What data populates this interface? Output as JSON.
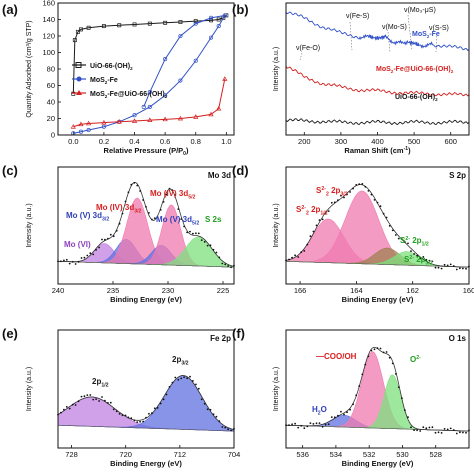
{
  "chart_data": [
    {
      "panel": "(a)",
      "type": "line",
      "xlabel": "Relative Pressure (P/P",
      "xlabel_sub": "0",
      "xlabel_end": ")",
      "ylabel": "Quantity Adsorbed (cm³/g STP)",
      "xlim": [
        -0.1,
        1.05
      ],
      "ylim": [
        0,
        160
      ],
      "xticks": [
        "0.0",
        "0.2",
        "0.4",
        "0.6",
        "0.8",
        "1.0"
      ],
      "yticks": [
        "0",
        "20",
        "40",
        "60",
        "80",
        "100",
        "120",
        "140",
        "160"
      ],
      "legend_position": "bottom-center",
      "series": [
        {
          "name": "UiO-66-(OH)",
          "name_sub": "2",
          "color": "#1a1a1a",
          "marker": "square",
          "x": [
            0.0,
            0.01,
            0.03,
            0.05,
            0.1,
            0.2,
            0.3,
            0.4,
            0.5,
            0.6,
            0.7,
            0.8,
            0.9,
            0.95,
            0.98,
            1.0
          ],
          "y": [
            50,
            115,
            125,
            128,
            130,
            132,
            133,
            134,
            135,
            136,
            137,
            138,
            139,
            140,
            142,
            145
          ]
        },
        {
          "name": "MoS",
          "name_sub": "2",
          "name_end": "-Fe",
          "color": "#3050c8",
          "marker": "circle",
          "x": [
            0.0,
            0.05,
            0.1,
            0.2,
            0.3,
            0.4,
            0.5,
            0.6,
            0.7,
            0.8,
            0.9,
            0.95,
            0.99,
            0.9,
            0.8,
            0.7,
            0.6,
            0.5,
            0.46
          ],
          "y": [
            2,
            4,
            6,
            10,
            16,
            24,
            34,
            48,
            66,
            90,
            118,
            132,
            145,
            142,
            135,
            120,
            92,
            52,
            34
          ]
        },
        {
          "name": "MoS",
          "name_sub": "2",
          "name_end": "-Fe@UiO-66-(OH)",
          "name_sub2": "2",
          "color": "#d42020",
          "marker": "triangle",
          "x": [
            0.0,
            0.05,
            0.1,
            0.2,
            0.3,
            0.4,
            0.5,
            0.6,
            0.7,
            0.8,
            0.9,
            0.95,
            0.99
          ],
          "y": [
            10,
            13,
            14,
            15,
            16,
            17,
            18,
            19,
            20,
            22,
            25,
            32,
            68
          ]
        }
      ]
    },
    {
      "panel": "(b)",
      "type": "line",
      "xlabel": "Raman Shift (cm",
      "xlabel_sup": "-1",
      "xlabel_end": ")",
      "ylabel": "Intensity (a.u.)",
      "xlim": [
        150,
        650
      ],
      "xticks": [
        "200",
        "300",
        "400",
        "500",
        "600"
      ],
      "annotations": [
        "ν(Fe-S)",
        "ν(Mo-S)",
        "ν(Mo₃-μS)",
        "ν(S-S)",
        "ν(Fe-O)"
      ],
      "series": [
        {
          "name": "MoS",
          "name_sub": "2",
          "name_end": "-Fe",
          "color": "#3050c8",
          "x": [
            150,
            200,
            250,
            300,
            350,
            380,
            400,
            420,
            450,
            480,
            500,
            520,
            550,
            600,
            650
          ],
          "y": [
            98,
            93,
            86,
            81,
            78,
            78,
            77,
            78,
            73,
            74,
            73,
            71,
            72,
            70,
            68
          ]
        },
        {
          "name": "MoS",
          "name_sub": "2",
          "name_end": "-Fe@UiO-66-(OH)",
          "name_sub2": "2",
          "color": "#d42020",
          "x": [
            150,
            200,
            250,
            300,
            350,
            400,
            450,
            500,
            550,
            600,
            650
          ],
          "y": [
            55,
            46,
            41,
            38,
            36,
            35,
            34,
            33,
            33,
            32,
            32
          ]
        },
        {
          "name": "UiO-66-(OH)",
          "name_sub": "2",
          "color": "#1a1a1a",
          "x": [
            150,
            200,
            250,
            300,
            350,
            400,
            450,
            500,
            550,
            600,
            650
          ],
          "y": [
            12,
            11,
            11,
            10,
            10,
            10,
            10,
            10,
            10,
            10,
            10
          ]
        }
      ]
    },
    {
      "panel": "(c)",
      "type": "area",
      "corner_label": "Mo 3d",
      "xlabel": "Binding Energy (eV)",
      "ylabel": "Intensity (a.u.)",
      "xlim": [
        240,
        224
      ],
      "xticks": [
        "240",
        "235",
        "230",
        "225"
      ],
      "peaks": [
        {
          "name": "Mo (VI)",
          "center": 235.8,
          "height": 0.2,
          "width": 0.9,
          "color": "#c080e0",
          "label_color": "#9040c0"
        },
        {
          "name": "Mo (V) 3d",
          "name_sub": "3/2",
          "center": 233.8,
          "height": 0.25,
          "width": 0.9,
          "color": "#6070e0",
          "label_color": "#3040b8"
        },
        {
          "name": "Mo (IV) 3d",
          "name_sub": "3/2",
          "center": 232.8,
          "height": 0.68,
          "width": 0.95,
          "color": "#f07ab0",
          "label_color": "#d82020"
        },
        {
          "name": "Mo (V) 3d",
          "name_sub": "5/2",
          "center": 230.6,
          "height": 0.2,
          "width": 0.9,
          "color": "#6070e0",
          "label_color": "#3040b8"
        },
        {
          "name": "Mo (IV) 3d",
          "name_sub": "5/2",
          "center": 229.7,
          "height": 0.62,
          "width": 0.85,
          "color": "#f07ab0",
          "label_color": "#d82020"
        },
        {
          "name": "S 2s",
          "center": 227.2,
          "height": 0.3,
          "width": 1.2,
          "color": "#7ee07e",
          "label_color": "#20a020"
        }
      ]
    },
    {
      "panel": "(d)",
      "type": "area",
      "corner_label": "S 2p",
      "xlabel": "Binding Energy (eV)",
      "ylabel": "Intensity (a.u.)",
      "xlim": [
        166.5,
        160
      ],
      "xticks": [
        "166",
        "164",
        "162",
        "160"
      ],
      "peaks": [
        {
          "name": "S",
          "name_sub": "2",
          "name_sup": "2-",
          "name_end": " 2p",
          "name_sub2": "1/2",
          "center": 165.0,
          "height": 0.45,
          "width": 0.55,
          "color": "#f07ab0",
          "label_color": "#d82020"
        },
        {
          "name": "S",
          "name_sub": "2",
          "name_sup": "2-",
          "name_end": " 2p",
          "name_sub2": "3/2",
          "center": 163.8,
          "height": 0.75,
          "width": 0.6,
          "color": "#f07ab0",
          "label_color": "#d82020"
        },
        {
          "name": "S",
          "name_sup": "2-",
          "name_end": " 2p",
          "name_sub2": "1/2",
          "center": 162.9,
          "height": 0.17,
          "width": 0.45,
          "color": "#a08050",
          "label_color": "#20a020"
        },
        {
          "name": "S",
          "name_sup": "2-",
          "name_end": " 2p",
          "name_sub2": "3/2",
          "center": 162.2,
          "height": 0.14,
          "width": 0.45,
          "color": "#7ee07e",
          "label_color": "#20a020"
        }
      ]
    },
    {
      "panel": "(e)",
      "type": "area",
      "corner_label": "Fe 2p",
      "xlabel": "Binding Energy (eV)",
      "ylabel": "Intensity (a.u.)",
      "xlim": [
        730,
        704
      ],
      "xticks": [
        "728",
        "720",
        "712",
        "704"
      ],
      "peaks": [
        {
          "name": "2p",
          "name_sub": "1/2",
          "center": 725.0,
          "height": 0.3,
          "width": 3.5,
          "color": "#c080e0",
          "label_color": "#1a1a1a"
        },
        {
          "name": "2p",
          "name_sub": "3/2",
          "center": 711.5,
          "height": 0.55,
          "width": 2.8,
          "color": "#6070e0",
          "label_color": "#1a1a1a"
        }
      ]
    },
    {
      "panel": "(f)",
      "type": "area",
      "corner_label": "O 1s",
      "xlabel": "Binding Energy (eV)",
      "ylabel": "Intensity (a.u.)",
      "xlim": [
        537,
        526
      ],
      "xticks": [
        "536",
        "534",
        "532",
        "530",
        "528"
      ],
      "peaks": [
        {
          "name": "H",
          "name_sub": "2",
          "name_end": "O",
          "center": 533.5,
          "height": 0.12,
          "width": 0.7,
          "color": "#6070e0",
          "label_color": "#3040b8"
        },
        {
          "name": "—COO/OH",
          "center": 531.8,
          "height": 0.78,
          "width": 0.65,
          "color": "#f07ab0",
          "label_color": "#d82020"
        },
        {
          "name": "O",
          "name_sup": "2-",
          "center": 530.6,
          "height": 0.55,
          "width": 0.5,
          "color": "#7ee07e",
          "label_color": "#20a020"
        }
      ]
    }
  ]
}
